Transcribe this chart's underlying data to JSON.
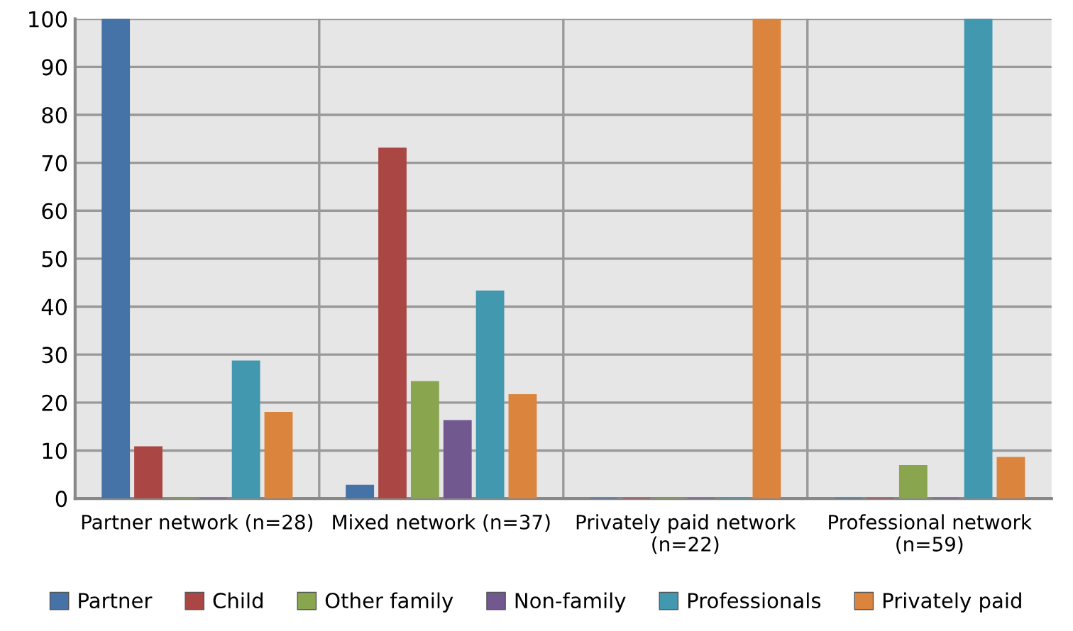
{
  "chart_data": {
    "type": "bar",
    "categories": [
      "Partner network (n=28)",
      "Mixed network (n=37)",
      "Privately paid network\n(n=22)",
      "Professional network\n(n=59)"
    ],
    "series": [
      {
        "name": "Partner",
        "color": "#4572a7",
        "values": [
          100,
          2.7,
          0,
          0
        ]
      },
      {
        "name": "Child",
        "color": "#aa4643",
        "values": [
          10.7,
          73,
          0,
          0
        ]
      },
      {
        "name": "Other family",
        "color": "#89a54e",
        "values": [
          0,
          24.3,
          0,
          6.8
        ]
      },
      {
        "name": "Non-family",
        "color": "#71588f",
        "values": [
          0,
          16.2,
          0,
          0
        ]
      },
      {
        "name": "Professionals",
        "color": "#4198af",
        "values": [
          28.6,
          43.2,
          0,
          100
        ]
      },
      {
        "name": "Privately paid",
        "color": "#db843d",
        "values": [
          17.9,
          21.6,
          100,
          8.5
        ]
      }
    ],
    "ylim": [
      0,
      100
    ],
    "yticks": [
      0,
      10,
      20,
      30,
      40,
      50,
      60,
      70,
      80,
      90,
      100
    ],
    "grid": true,
    "legend": "bottom"
  }
}
